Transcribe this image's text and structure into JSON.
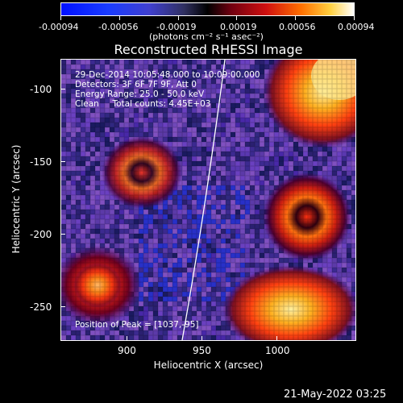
{
  "colorbar": {
    "tick_labels": [
      "-0.00094",
      "-0.00056",
      "-0.00019",
      "0.00019",
      "0.00056",
      "0.00094"
    ],
    "units": "(photons cm⁻² s⁻¹ asec⁻²)"
  },
  "title": "Reconstructed RHESSI Image",
  "info": {
    "line1": "29-Dec-2014 10:05:48.000 to 10:09:00.000",
    "line2": "Detectors: 3F 6F 7F 9F, Att 0",
    "line3": "Energy Range: 25.0 - 50.0 keV",
    "line4": "Clean     Total counts: 4.45E+03"
  },
  "peak": "Position of Peak = [1037,-95]",
  "axes": {
    "xlabel": "Heliocentric X (arcsec)",
    "ylabel": "Heliocentric Y (arcsec)",
    "x_ticks": [
      "900",
      "950",
      "1000"
    ],
    "y_ticks": [
      "-100",
      "-150",
      "-200",
      "-250"
    ]
  },
  "footer_date": "21-May-2022 03:25"
}
